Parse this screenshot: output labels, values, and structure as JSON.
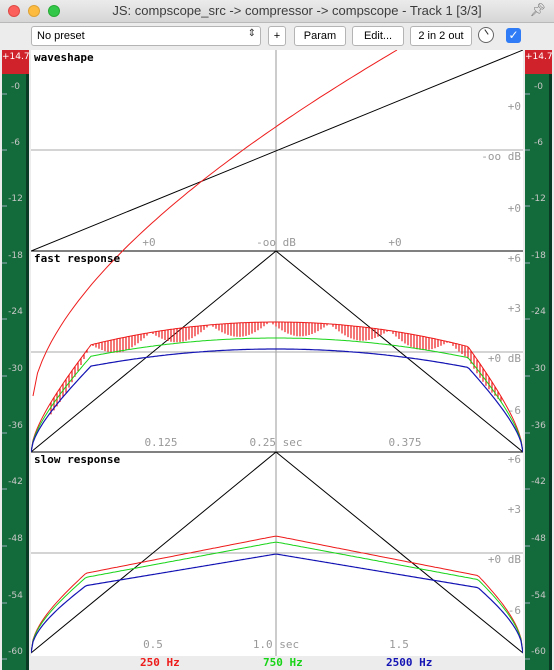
{
  "window": {
    "title": "JS: compscope_src -> compressor -> compscope - Track 1 [3/3]"
  },
  "toolbar": {
    "preset": "No preset",
    "add_label": "+",
    "param_label": "Param",
    "edit_label": "Edit...",
    "io_label": "2 in 2 out"
  },
  "meters": {
    "peak": "+14.7",
    "scale": [
      "-0",
      "-6",
      "-12",
      "-18",
      "-24",
      "-30",
      "-36",
      "-42",
      "-48",
      "-54",
      "-60"
    ]
  },
  "colors": {
    "meter_top": "#d0222a",
    "meter_body": "#136a3a",
    "meter_dark": "#0a3a24",
    "red": "#ee1b1b",
    "green": "#18d418",
    "blue": "#1414b4"
  },
  "panels": {
    "waveshape": {
      "title": "waveshape",
      "right_labels": [
        "+0",
        "-oo dB",
        "+0"
      ],
      "bottom_labels": [
        "+0",
        "-oo dB",
        "+0"
      ]
    },
    "fast": {
      "title": "fast response",
      "right_labels": [
        "+6",
        "+3",
        "+0 dB",
        "-6"
      ],
      "bottom_labels": [
        "0.125",
        "0.25 sec",
        "0.375"
      ]
    },
    "slow": {
      "title": "slow response",
      "right_labels": [
        "+6",
        "+3",
        "+0 dB",
        "-6"
      ],
      "bottom_labels": [
        "0.5",
        "1.0 sec",
        "1.5"
      ]
    }
  },
  "legend": {
    "red_label": "250 Hz",
    "green_label": "750 Hz",
    "blue_label": "2500 Hz"
  }
}
